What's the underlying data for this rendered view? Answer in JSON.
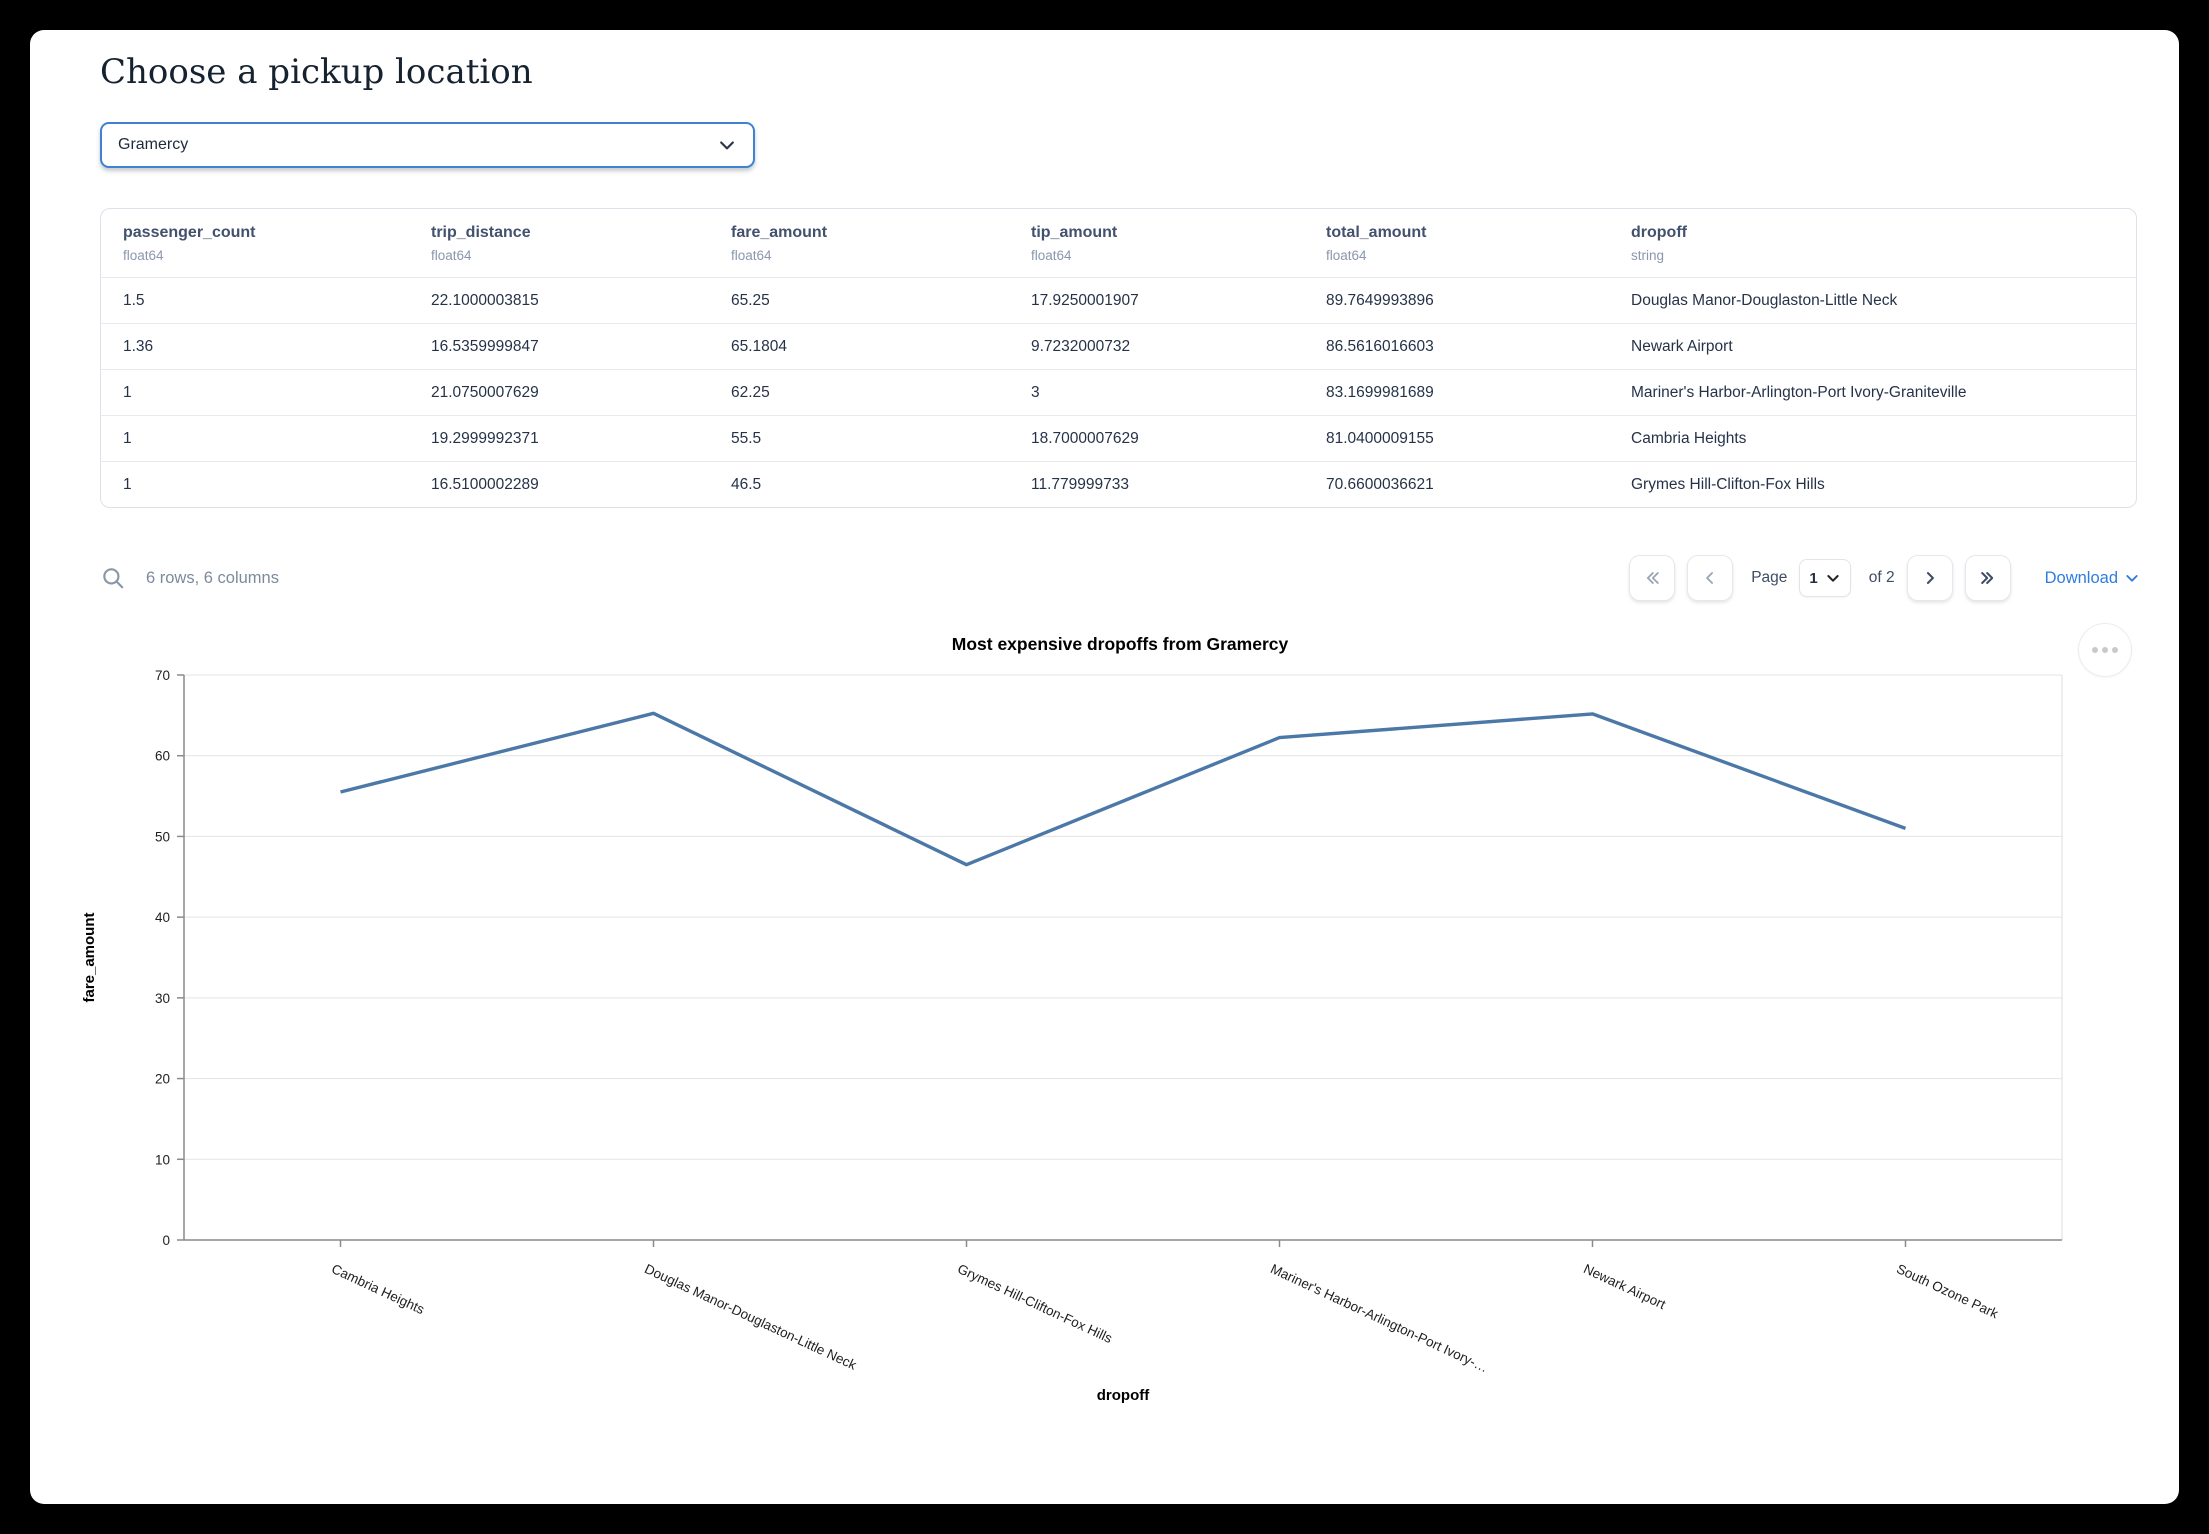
{
  "page": {
    "title": "Choose a pickup location"
  },
  "pickup_select": {
    "value": "Gramercy"
  },
  "table": {
    "columns": [
      {
        "name": "passenger_count",
        "type": "float64"
      },
      {
        "name": "trip_distance",
        "type": "float64"
      },
      {
        "name": "fare_amount",
        "type": "float64"
      },
      {
        "name": "tip_amount",
        "type": "float64"
      },
      {
        "name": "total_amount",
        "type": "float64"
      },
      {
        "name": "dropoff",
        "type": "string"
      }
    ],
    "rows": [
      [
        "1.5",
        "22.1000003815",
        "65.25",
        "17.9250001907",
        "89.7649993896",
        "Douglas Manor-Douglaston-Little Neck"
      ],
      [
        "1.36",
        "16.5359999847",
        "65.1804",
        "9.7232000732",
        "86.5616016603",
        "Newark Airport"
      ],
      [
        "1",
        "21.0750007629",
        "62.25",
        "3",
        "83.1699981689",
        "Mariner's Harbor-Arlington-Port Ivory-Graniteville"
      ],
      [
        "1",
        "19.2999992371",
        "55.5",
        "18.7000007629",
        "81.0400009155",
        "Cambria Heights"
      ],
      [
        "1",
        "16.5100002289",
        "46.5",
        "11.779999733",
        "70.6600036621",
        "Grymes Hill-Clifton-Fox Hills"
      ]
    ],
    "summary": "6 rows, 6 columns"
  },
  "pagination": {
    "page_label": "Page",
    "page_value": "1",
    "of_label": "of 2",
    "download_label": "Download"
  },
  "chart_data": {
    "type": "line",
    "title": "Most expensive dropoffs from Gramercy",
    "xlabel": "dropoff",
    "ylabel": "fare_amount",
    "categories": [
      "Cambria Heights",
      "Douglas Manor-Douglaston-Little Neck",
      "Grymes Hill-Clifton-Fox Hills",
      "Mariner's Harbor-Arlington-Port Ivory-…",
      "Newark Airport",
      "South Ozone Park"
    ],
    "values": [
      55.5,
      65.25,
      46.5,
      62.25,
      65.1804,
      51
    ],
    "ylim": [
      0,
      70
    ],
    "yticks": [
      0,
      10,
      20,
      30,
      40,
      50,
      60,
      70
    ],
    "grid": true,
    "legend": "none",
    "line_color": "#4c78a8"
  },
  "colors": {
    "accent_blue": "#3f82d2",
    "link_blue": "#2f7ce0",
    "header_text": "#42516d",
    "line": "#4c78a8"
  }
}
